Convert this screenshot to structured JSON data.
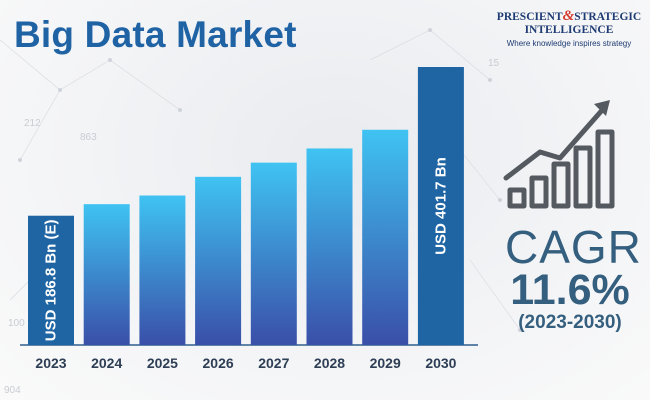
{
  "header": {
    "title": "Big Data Market"
  },
  "logo": {
    "line1_a": "PRESCIENT",
    "line1_amp": "&",
    "line1_b": "STRATEGIC",
    "line2": "INTELLIGENCE",
    "tagline": "Where knowledge inspires strategy"
  },
  "cagr": {
    "label": "CAGR",
    "value": "11.6%",
    "period": "(2023-2030)"
  },
  "colors": {
    "title": "#1f63a5",
    "bar_top": "#3fc3f2",
    "bar_bottom": "#3a4fa8",
    "end_bar": "#1f65a3",
    "cagr_text": "#355f7f"
  },
  "chart_data": {
    "type": "bar",
    "title": "Big Data Market",
    "categories": [
      "2023",
      "2024",
      "2025",
      "2026",
      "2027",
      "2028",
      "2029",
      "2030"
    ],
    "values": [
      186.8,
      203.5,
      216.0,
      243.0,
      263.5,
      284.0,
      311.0,
      401.7
    ],
    "unit": "USD Bn",
    "ylim": [
      0,
      401.7
    ],
    "grid": false,
    "legend": "none",
    "data_labels": [
      {
        "category": "2023",
        "text": "USD 186.8 Bn (E)"
      },
      {
        "category": "2030",
        "text": "USD 401.7 Bn"
      }
    ]
  }
}
